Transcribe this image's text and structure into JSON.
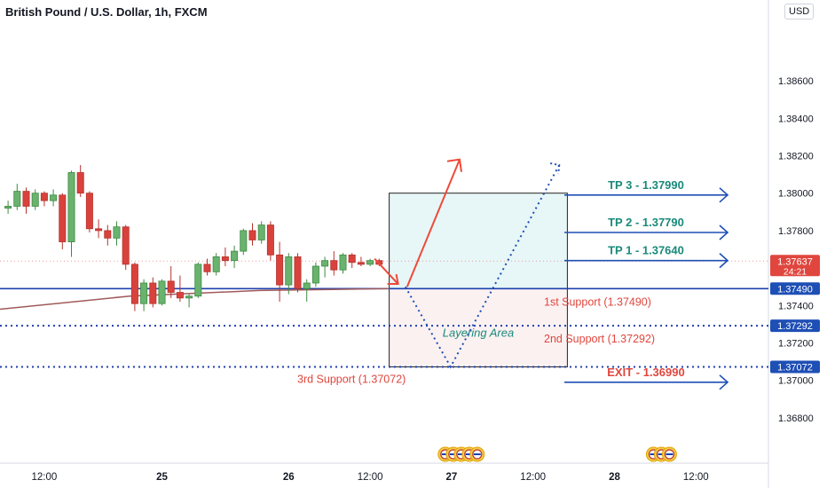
{
  "header": {
    "title": "British Pound / U.S. Dollar, 1h, FXCM",
    "currency_button": "USD"
  },
  "colors": {
    "up": "#26a69a",
    "up_fill": "#69b36f",
    "down": "#d9423c",
    "support_line": "#1e40af",
    "dotted": "#1e40af",
    "tp_text": "#1a8a7a",
    "support_text": "#e0463e",
    "ma": "#a05a5a",
    "arrow_blue": "#1e4fb5",
    "arrow_red": "#ee4a3a"
  },
  "chart_data": {
    "type": "candlestick",
    "symbol": "British Pound / U.S. Dollar, 1h, FXCM",
    "ylim": [
      1.367,
      1.389
    ],
    "price_ticks": [
      "1.38600",
      "1.38400",
      "1.38200",
      "1.38000",
      "1.37800",
      "1.37600",
      "1.37400",
      "1.37200",
      "1.37000",
      "1.36800"
    ],
    "price_tick_values": [
      1.386,
      1.384,
      1.382,
      1.38,
      1.378,
      1.376,
      1.374,
      1.372,
      1.37,
      1.368
    ],
    "price_badges": [
      {
        "label": "1.37637",
        "sub": "24:21",
        "value": 1.37637,
        "color": "#e0463e"
      },
      {
        "label": "1.37490",
        "value": 1.3749,
        "color": "#1e4fb5"
      },
      {
        "label": "1.37292",
        "value": 1.37292,
        "color": "#1e4fb5"
      },
      {
        "label": "1.37072",
        "value": 1.37072,
        "color": "#1e4fb5"
      }
    ],
    "time_labels": [
      {
        "label": "12:00",
        "bar": 4
      },
      {
        "label": "25",
        "bar": 17
      },
      {
        "label": "26",
        "bar": 31
      },
      {
        "label": "12:00",
        "bar": 40
      },
      {
        "label": "27",
        "bar": 49
      },
      {
        "label": "12:00",
        "bar": 58
      },
      {
        "label": "28",
        "bar": 67
      },
      {
        "label": "12:00",
        "bar": 76
      }
    ],
    "candles": [
      {
        "o": 1.3792,
        "h": 1.3796,
        "l": 1.3789,
        "c": 1.3793
      },
      {
        "o": 1.3793,
        "h": 1.3805,
        "l": 1.3791,
        "c": 1.3801
      },
      {
        "o": 1.3801,
        "h": 1.3803,
        "l": 1.3789,
        "c": 1.3793
      },
      {
        "o": 1.3793,
        "h": 1.3802,
        "l": 1.3791,
        "c": 1.38
      },
      {
        "o": 1.38,
        "h": 1.3801,
        "l": 1.3793,
        "c": 1.3796
      },
      {
        "o": 1.3796,
        "h": 1.3802,
        "l": 1.3793,
        "c": 1.3799
      },
      {
        "o": 1.3799,
        "h": 1.38,
        "l": 1.377,
        "c": 1.3774
      },
      {
        "o": 1.3774,
        "h": 1.3812,
        "l": 1.3766,
        "c": 1.3811
      },
      {
        "o": 1.3811,
        "h": 1.3815,
        "l": 1.3798,
        "c": 1.38
      },
      {
        "o": 1.38,
        "h": 1.3801,
        "l": 1.3779,
        "c": 1.3781
      },
      {
        "o": 1.3781,
        "h": 1.3786,
        "l": 1.3776,
        "c": 1.378
      },
      {
        "o": 1.378,
        "h": 1.3783,
        "l": 1.3772,
        "c": 1.3776
      },
      {
        "o": 1.3776,
        "h": 1.3785,
        "l": 1.3772,
        "c": 1.3782
      },
      {
        "o": 1.3782,
        "h": 1.3783,
        "l": 1.3759,
        "c": 1.3762
      },
      {
        "o": 1.3762,
        "h": 1.3763,
        "l": 1.3737,
        "c": 1.3741
      },
      {
        "o": 1.3741,
        "h": 1.3754,
        "l": 1.3737,
        "c": 1.3752
      },
      {
        "o": 1.3752,
        "h": 1.3755,
        "l": 1.3739,
        "c": 1.3741
      },
      {
        "o": 1.3741,
        "h": 1.3754,
        "l": 1.374,
        "c": 1.3753
      },
      {
        "o": 1.3753,
        "h": 1.3761,
        "l": 1.3744,
        "c": 1.3747
      },
      {
        "o": 1.3747,
        "h": 1.3756,
        "l": 1.3742,
        "c": 1.3744
      },
      {
        "o": 1.3744,
        "h": 1.3746,
        "l": 1.3739,
        "c": 1.3745
      },
      {
        "o": 1.3745,
        "h": 1.3763,
        "l": 1.3744,
        "c": 1.3762
      },
      {
        "o": 1.3762,
        "h": 1.3765,
        "l": 1.3756,
        "c": 1.3758
      },
      {
        "o": 1.3758,
        "h": 1.3768,
        "l": 1.3756,
        "c": 1.3766
      },
      {
        "o": 1.3766,
        "h": 1.3771,
        "l": 1.3761,
        "c": 1.3764
      },
      {
        "o": 1.3764,
        "h": 1.3772,
        "l": 1.376,
        "c": 1.3769
      },
      {
        "o": 1.3769,
        "h": 1.3781,
        "l": 1.3767,
        "c": 1.378
      },
      {
        "o": 1.378,
        "h": 1.3784,
        "l": 1.3772,
        "c": 1.3775
      },
      {
        "o": 1.3775,
        "h": 1.3785,
        "l": 1.3773,
        "c": 1.3783
      },
      {
        "o": 1.3783,
        "h": 1.3785,
        "l": 1.3764,
        "c": 1.3767
      },
      {
        "o": 1.3767,
        "h": 1.3774,
        "l": 1.3742,
        "c": 1.3751
      },
      {
        "o": 1.3751,
        "h": 1.3768,
        "l": 1.3746,
        "c": 1.3766
      },
      {
        "o": 1.3766,
        "h": 1.3768,
        "l": 1.3747,
        "c": 1.3749
      },
      {
        "o": 1.3749,
        "h": 1.3754,
        "l": 1.3742,
        "c": 1.3752
      },
      {
        "o": 1.3752,
        "h": 1.3763,
        "l": 1.375,
        "c": 1.3761
      },
      {
        "o": 1.3761,
        "h": 1.3766,
        "l": 1.3755,
        "c": 1.3764
      },
      {
        "o": 1.3764,
        "h": 1.3769,
        "l": 1.3756,
        "c": 1.3759
      },
      {
        "o": 1.3759,
        "h": 1.3768,
        "l": 1.3757,
        "c": 1.3767
      },
      {
        "o": 1.3767,
        "h": 1.3768,
        "l": 1.376,
        "c": 1.3763
      },
      {
        "o": 1.3763,
        "h": 1.3766,
        "l": 1.3761,
        "c": 1.3762
      },
      {
        "o": 1.3762,
        "h": 1.3765,
        "l": 1.3761,
        "c": 1.3764
      },
      {
        "o": 1.3764,
        "h": 1.3765,
        "l": 1.3761,
        "c": 1.3762
      }
    ],
    "moving_average": [
      1.3738,
      1.3745,
      1.3748,
      1.3749
    ],
    "box_upper": {
      "top": 1.38,
      "bottom": 1.3749,
      "bar_start": 43,
      "bar_end": 62
    },
    "box_lower": {
      "top": 1.3749,
      "bottom": 1.37072,
      "bar_start": 43,
      "bar_end": 62
    },
    "horizontal_lines": [
      {
        "value": 1.3749,
        "style": "solid"
      },
      {
        "value": 1.37292,
        "style": "dotted"
      },
      {
        "value": 1.37072,
        "style": "dotted"
      },
      {
        "value": 1.37637,
        "style": "dotted-light"
      }
    ],
    "annotations": [
      {
        "text": "TP 3 - 1.37990",
        "value": 1.3799,
        "kind": "tp"
      },
      {
        "text": "TP 2 - 1.37790",
        "value": 1.3779,
        "kind": "tp"
      },
      {
        "text": "TP 1 - 1.37640",
        "value": 1.3764,
        "kind": "tp"
      },
      {
        "text": "EXIT - 1.36990",
        "value": 1.3699,
        "kind": "exit"
      },
      {
        "text": "1st Support (1.37490)",
        "value": 1.3749,
        "kind": "support"
      },
      {
        "text": "2nd Support (1.37292)",
        "value": 1.37292,
        "kind": "support"
      },
      {
        "text": "3rd Support (1.37072)",
        "value": 1.37072,
        "kind": "support3"
      }
    ],
    "layering_label": "Layering Area",
    "event_icon_groups": [
      {
        "bar": 49,
        "count": 5
      },
      {
        "bar": 72,
        "count": 3
      }
    ]
  }
}
